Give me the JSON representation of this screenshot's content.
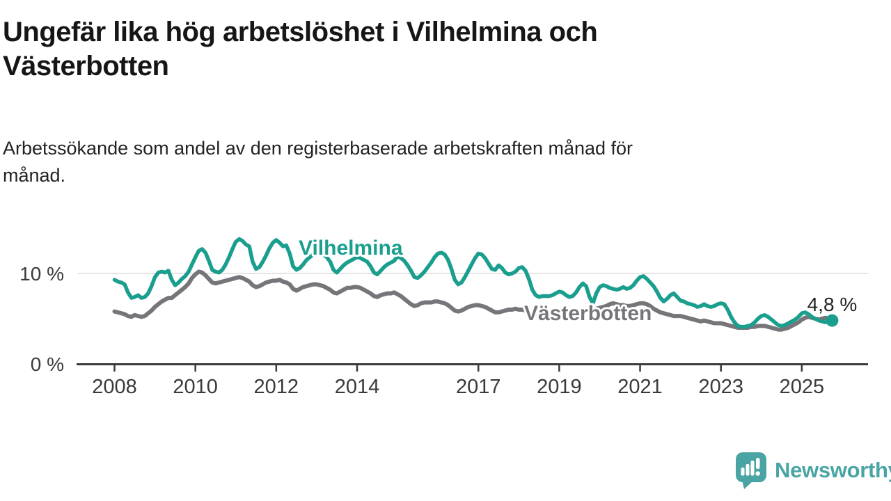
{
  "header": {
    "title": "Ungefär lika hög arbetslöshet i Vilhelmina och Västerbotten",
    "title_lines": [
      "Ungefär lika hög arbetslöshet i Vilhelmina och",
      "Västerbotten"
    ],
    "subtitle": "Arbetssökande som andel av den registerbaserade arbetskraften månad för månad.",
    "subtitle_lines": [
      "Arbetssökande som andel av den registerbaserade arbetskraften månad för",
      "månad."
    ]
  },
  "branding": {
    "name": "Newsworthy",
    "logo_icon": "speech-bubble-bar-chart-icon",
    "color": "#4aa4a4"
  },
  "colors": {
    "vilhelmina": "#1a9e8e",
    "vasterbotten": "#76767a",
    "axis": "#3a3a3a",
    "grid": "#dcdcdc",
    "title_text": "#161616",
    "value_label": "#222222",
    "background": "#ffffff"
  },
  "chart_data": {
    "type": "line",
    "title": "Ungefär lika hög arbetslöshet i Vilhelmina och Västerbotten",
    "subtitle": "Arbetssökande som andel av den registerbaserade arbetskraften månad för månad.",
    "x_start": "2008-01",
    "x_frequency": "monthly",
    "x_tick_labels": [
      "2008",
      "2010",
      "2012",
      "2014",
      "2017",
      "2019",
      "2021",
      "2023",
      "2025"
    ],
    "x_tick_years": [
      2008,
      2010,
      2012,
      2014,
      2017,
      2019,
      2021,
      2023,
      2025
    ],
    "y_ticks": [
      {
        "value": 0,
        "label": "0 %"
      },
      {
        "value": 10,
        "label": "10 %"
      }
    ],
    "ylim": [
      0,
      14.5
    ],
    "grid": "single horizontal gridline at 10 %",
    "legend": "inline series labels on chart",
    "end_annotation": {
      "series": "Vilhelmina",
      "label": "4,8 %",
      "value": 4.8
    },
    "series": [
      {
        "name": "Västerbotten",
        "color": "#76767a",
        "values": [
          5.8,
          5.7,
          5.6,
          5.5,
          5.3,
          5.2,
          5.4,
          5.3,
          5.2,
          5.3,
          5.6,
          5.9,
          6.3,
          6.6,
          6.9,
          7.1,
          7.3,
          7.3,
          7.6,
          7.9,
          8.2,
          8.5,
          8.9,
          9.5,
          9.9,
          10.2,
          10.1,
          9.8,
          9.4,
          9.0,
          8.9,
          9.0,
          9.1,
          9.2,
          9.3,
          9.4,
          9.5,
          9.6,
          9.5,
          9.3,
          9.1,
          8.7,
          8.5,
          8.6,
          8.8,
          9.0,
          9.1,
          9.2,
          9.2,
          9.3,
          9.1,
          9.0,
          8.8,
          8.3,
          8.1,
          8.3,
          8.5,
          8.6,
          8.7,
          8.8,
          8.8,
          8.7,
          8.6,
          8.4,
          8.2,
          7.9,
          7.8,
          8.0,
          8.2,
          8.4,
          8.4,
          8.5,
          8.5,
          8.4,
          8.2,
          8.0,
          7.8,
          7.5,
          7.4,
          7.6,
          7.7,
          7.8,
          7.8,
          7.9,
          7.7,
          7.5,
          7.2,
          6.9,
          6.6,
          6.4,
          6.5,
          6.7,
          6.8,
          6.8,
          6.8,
          6.9,
          6.9,
          6.8,
          6.7,
          6.5,
          6.2,
          5.9,
          5.8,
          5.9,
          6.1,
          6.3,
          6.4,
          6.5,
          6.5,
          6.4,
          6.3,
          6.1,
          5.9,
          5.7,
          5.7,
          5.8,
          5.9,
          6.0,
          6.0,
          6.1,
          6.0,
          6.0,
          5.9,
          5.8,
          5.6,
          5.5,
          5.5,
          5.6,
          5.6,
          5.6,
          5.7,
          5.8,
          5.9,
          5.9,
          5.8,
          5.7,
          5.6,
          5.6,
          5.7,
          5.8,
          5.8,
          5.8,
          5.9,
          6.1,
          6.2,
          6.3,
          6.4,
          6.6,
          6.7,
          6.6,
          6.5,
          6.5,
          6.4,
          6.4,
          6.5,
          6.6,
          6.7,
          6.7,
          6.6,
          6.4,
          6.1,
          5.9,
          5.7,
          5.6,
          5.5,
          5.4,
          5.3,
          5.3,
          5.3,
          5.2,
          5.1,
          5.0,
          4.9,
          4.8,
          4.7,
          4.8,
          4.7,
          4.6,
          4.5,
          4.5,
          4.5,
          4.4,
          4.3,
          4.2,
          4.1,
          4.0,
          4.0,
          4.0,
          4.0,
          4.1,
          4.1,
          4.2,
          4.2,
          4.2,
          4.1,
          4.0,
          3.9,
          3.8,
          3.8,
          3.9,
          4.0,
          4.2,
          4.4,
          4.6,
          4.9,
          5.1,
          5.2,
          5.1,
          5.0,
          4.9,
          5.0,
          5.1,
          5.0,
          4.9
        ]
      },
      {
        "name": "Vilhelmina",
        "color": "#1a9e8e",
        "values": [
          9.3,
          9.1,
          9.0,
          8.8,
          7.9,
          7.3,
          7.4,
          7.6,
          7.3,
          7.4,
          7.8,
          8.6,
          9.6,
          10.1,
          10.2,
          10.1,
          10.3,
          9.3,
          8.7,
          9.0,
          9.4,
          9.7,
          10.2,
          11.0,
          11.8,
          12.5,
          12.7,
          12.3,
          11.4,
          10.4,
          10.2,
          10.1,
          10.4,
          11.0,
          11.8,
          12.7,
          13.5,
          13.8,
          13.6,
          13.2,
          13.0,
          11.3,
          10.5,
          10.7,
          11.3,
          12.0,
          12.8,
          13.4,
          13.7,
          13.4,
          13.0,
          13.1,
          12.2,
          10.8,
          10.4,
          10.6,
          11.0,
          11.5,
          11.8,
          12.1,
          12.5,
          12.3,
          12.1,
          11.8,
          11.3,
          10.4,
          10.1,
          10.5,
          10.9,
          11.2,
          11.4,
          11.6,
          11.8,
          11.7,
          11.5,
          11.3,
          10.8,
          10.1,
          9.9,
          10.3,
          10.7,
          11.0,
          11.2,
          11.4,
          11.9,
          11.7,
          11.4,
          10.9,
          10.3,
          9.6,
          9.5,
          9.8,
          10.2,
          10.7,
          11.2,
          11.8,
          12.2,
          12.3,
          12.1,
          11.5,
          10.5,
          9.3,
          8.8,
          9.0,
          9.6,
          10.3,
          11.0,
          11.7,
          12.2,
          12.1,
          11.7,
          11.1,
          10.5,
          10.4,
          10.9,
          10.6,
          10.1,
          9.9,
          10.0,
          10.2,
          10.6,
          10.7,
          10.3,
          9.4,
          8.2,
          7.6,
          7.4,
          7.5,
          7.5,
          7.5,
          7.6,
          7.8,
          8.0,
          7.9,
          7.6,
          7.4,
          7.5,
          7.9,
          8.5,
          8.9,
          8.6,
          7.4,
          6.7,
          7.8,
          8.5,
          8.7,
          8.6,
          8.4,
          8.3,
          8.2,
          8.3,
          8.5,
          8.3,
          8.4,
          8.7,
          9.2,
          9.6,
          9.7,
          9.4,
          9.0,
          8.6,
          8.0,
          7.3,
          6.9,
          7.2,
          7.6,
          7.8,
          7.4,
          7.0,
          6.9,
          6.7,
          6.6,
          6.5,
          6.3,
          6.4,
          6.6,
          6.4,
          6.3,
          6.4,
          6.6,
          6.7,
          6.6,
          6.0,
          5.2,
          4.6,
          4.2,
          4.1,
          4.1,
          4.2,
          4.3,
          4.6,
          5.0,
          5.3,
          5.4,
          5.2,
          4.9,
          4.6,
          4.3,
          4.2,
          4.3,
          4.5,
          4.7,
          4.9,
          5.2,
          5.6,
          5.7,
          5.5,
          5.2,
          5.0,
          4.8,
          4.7,
          4.6,
          4.7,
          4.8
        ]
      }
    ]
  }
}
